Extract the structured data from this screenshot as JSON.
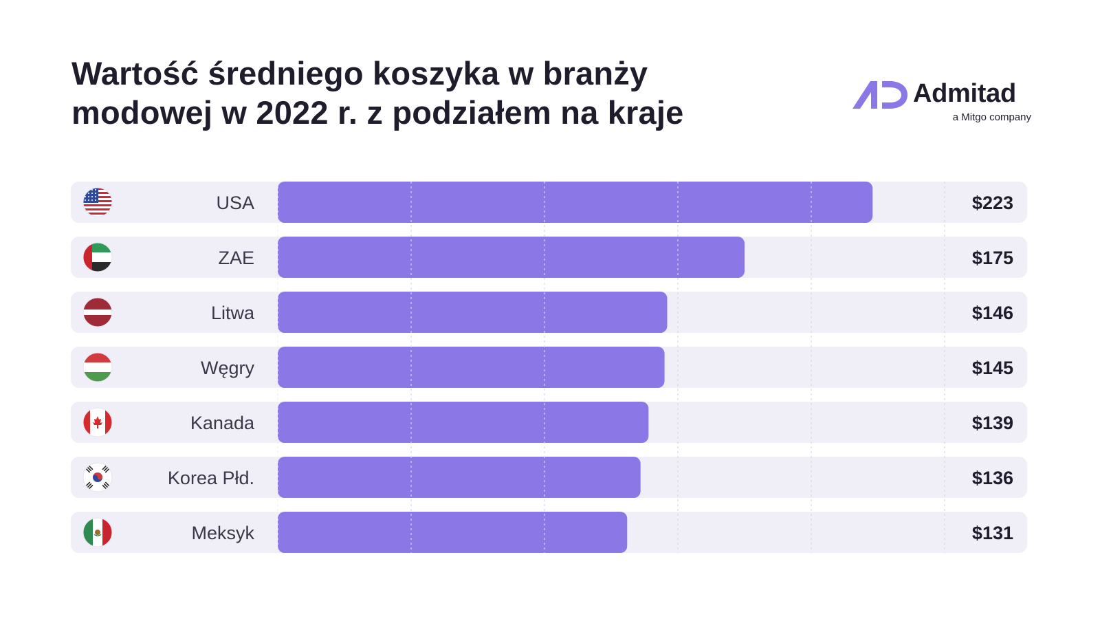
{
  "header": {
    "title": "Wartość średniego koszyka w branży modowej w 2022 r. z podziałem na kraje"
  },
  "brand": {
    "name": "Admitad",
    "tagline": "a Mitgo company",
    "logo_icon": "admitad-ad-logo-icon",
    "accent_color": "#8b78e6"
  },
  "chart_data": {
    "type": "bar",
    "orientation": "horizontal",
    "title": "Wartość średniego koszyka w branży modowej w 2022 r. z podziałem na kraje",
    "categories": [
      "USA",
      "ZAE",
      "Litwa",
      "Węgry",
      "Kanada",
      "Korea Płd.",
      "Meksyk"
    ],
    "values": [
      223,
      175,
      146,
      145,
      139,
      136,
      131
    ],
    "value_labels": [
      "$223",
      "$175",
      "$146",
      "$145",
      "$139",
      "$136",
      "$131"
    ],
    "flags": [
      "us-flag-icon",
      "uae-flag-icon",
      "latvia-flag-icon",
      "hungary-flag-icon",
      "canada-flag-icon",
      "south-korea-flag-icon",
      "mexico-flag-icon"
    ],
    "xlim": [
      0,
      250
    ],
    "grid": true,
    "grid_step": 50,
    "bar_color": "#8b78e6",
    "track_color": "#f0eff8"
  }
}
